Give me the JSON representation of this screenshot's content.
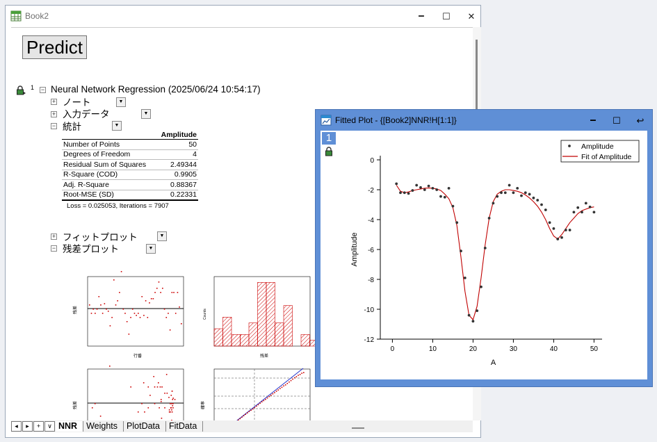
{
  "book_window": {
    "title": "Book2",
    "min_glyph": "🗕",
    "max_glyph": "☐",
    "close_glyph": "✕"
  },
  "predict_button": "Predict",
  "report": {
    "row_number": "1",
    "title": "Neural Network Regression (2025/06/24 10:54:17)",
    "nodes": {
      "notes": "ノート",
      "input": "入力データ",
      "stats": "統計",
      "fit_plot": "フィットプロット",
      "residual_plot": "残差プロット"
    },
    "expand_glyph": "+",
    "collapse_glyph": "−",
    "dropdown_glyph": "▼",
    "stats_header": "Amplitude",
    "stats_rows": [
      {
        "label": "Number of Points",
        "value": "50"
      },
      {
        "label": "Degrees of Freedom",
        "value": "4"
      },
      {
        "label": "Residual Sum of Squares",
        "value": "2.49344"
      },
      {
        "label": "R-Square (COD)",
        "value": "0.9905"
      },
      {
        "label": "Adj. R-Square",
        "value": "0.88367"
      },
      {
        "label": "Root-MSE (SD)",
        "value": "0.22331"
      }
    ],
    "loss_text": "Loss = 0.025053, Iterations = 7907"
  },
  "sheet_tabs": {
    "nav": [
      "◂",
      "▸",
      "+",
      "∨"
    ],
    "tabs": [
      "NNR",
      "Weights",
      "PlotData",
      "FitData"
    ],
    "active": "NNR"
  },
  "colors": {
    "accent": "#5f8fd6",
    "fit_line": "#c00000",
    "data_point": "#333333",
    "residual": "#cc0000"
  },
  "plot_window": {
    "title": "Fitted Plot - {[Book2]NNR!H[1:1]}",
    "layer_label": "1",
    "min_glyph": "🗕",
    "max_glyph": "☐",
    "restore_glyph": "↩"
  },
  "chart_data": {
    "type": "scatter",
    "xlabel": "A",
    "ylabel": "Amplitude",
    "xlim": [
      -3,
      52
    ],
    "ylim": [
      -12,
      0
    ],
    "x_ticks": [
      0,
      10,
      20,
      30,
      40,
      50
    ],
    "y_ticks": [
      0,
      -2,
      -4,
      -6,
      -8,
      -10,
      -12
    ],
    "legend_position": "top-right",
    "series": [
      {
        "name": "Amplitude",
        "style": "points",
        "x": [
          1,
          2,
          3,
          4,
          5,
          6,
          7,
          8,
          9,
          10,
          11,
          12,
          13,
          14,
          15,
          16,
          17,
          18,
          19,
          20,
          21,
          22,
          23,
          24,
          25,
          26,
          27,
          28,
          29,
          30,
          31,
          32,
          33,
          34,
          35,
          36,
          37,
          38,
          39,
          40,
          41,
          42,
          43,
          44,
          45,
          46,
          47,
          48,
          49,
          50
        ],
        "y": [
          -1.6,
          -2.2,
          -2.2,
          -2.25,
          -2.05,
          -1.7,
          -1.85,
          -2.0,
          -1.75,
          -1.9,
          -2.0,
          -2.45,
          -2.5,
          -1.9,
          -3.1,
          -4.2,
          -6.1,
          -7.9,
          -10.4,
          -10.8,
          -10.1,
          -8.5,
          -5.9,
          -3.9,
          -2.9,
          -2.45,
          -2.2,
          -2.2,
          -1.7,
          -2.2,
          -1.9,
          -2.4,
          -2.2,
          -2.3,
          -2.55,
          -2.7,
          -3.0,
          -3.35,
          -4.2,
          -4.6,
          -5.3,
          -5.2,
          -4.7,
          -4.7,
          -3.5,
          -3.2,
          -3.5,
          -2.9,
          -3.15,
          -3.5
        ]
      },
      {
        "name": "Fit of Amplitude",
        "style": "line",
        "x": [
          1,
          2,
          3,
          4,
          5,
          6,
          7,
          8,
          9,
          10,
          11,
          12,
          13,
          14,
          15,
          16,
          17,
          18,
          19,
          20,
          21,
          22,
          23,
          24,
          25,
          26,
          27,
          28,
          29,
          30,
          31,
          32,
          33,
          34,
          35,
          36,
          37,
          38,
          39,
          40,
          41,
          42,
          43,
          44,
          45,
          46,
          47,
          48,
          49,
          50
        ],
        "y": [
          -1.7,
          -2.1,
          -2.2,
          -2.15,
          -2.05,
          -2.0,
          -1.95,
          -1.9,
          -1.88,
          -1.9,
          -1.95,
          -2.05,
          -2.3,
          -2.6,
          -3.2,
          -4.4,
          -6.5,
          -8.8,
          -10.4,
          -10.7,
          -9.8,
          -7.9,
          -5.7,
          -3.9,
          -2.8,
          -2.3,
          -2.1,
          -2.0,
          -2.0,
          -2.05,
          -2.1,
          -2.2,
          -2.35,
          -2.55,
          -2.8,
          -3.1,
          -3.5,
          -4.0,
          -4.6,
          -5.1,
          -5.3,
          -5.0,
          -4.6,
          -4.2,
          -3.9,
          -3.6,
          -3.4,
          -3.3,
          -3.2,
          -3.15
        ]
      }
    ]
  },
  "mini_plots": {
    "residual_vs_order_ylabel": "残差",
    "residual_vs_order_xlabel": "行番",
    "histogram_ylabel": "Counts",
    "histogram_xlabel": "残差",
    "residual_vs_fit_ylabel": "残差",
    "probability_ylabel": "確率",
    "histogram_counts": [
      3,
      5,
      2,
      2,
      4,
      11,
      11,
      4,
      7,
      0,
      2,
      1
    ]
  }
}
